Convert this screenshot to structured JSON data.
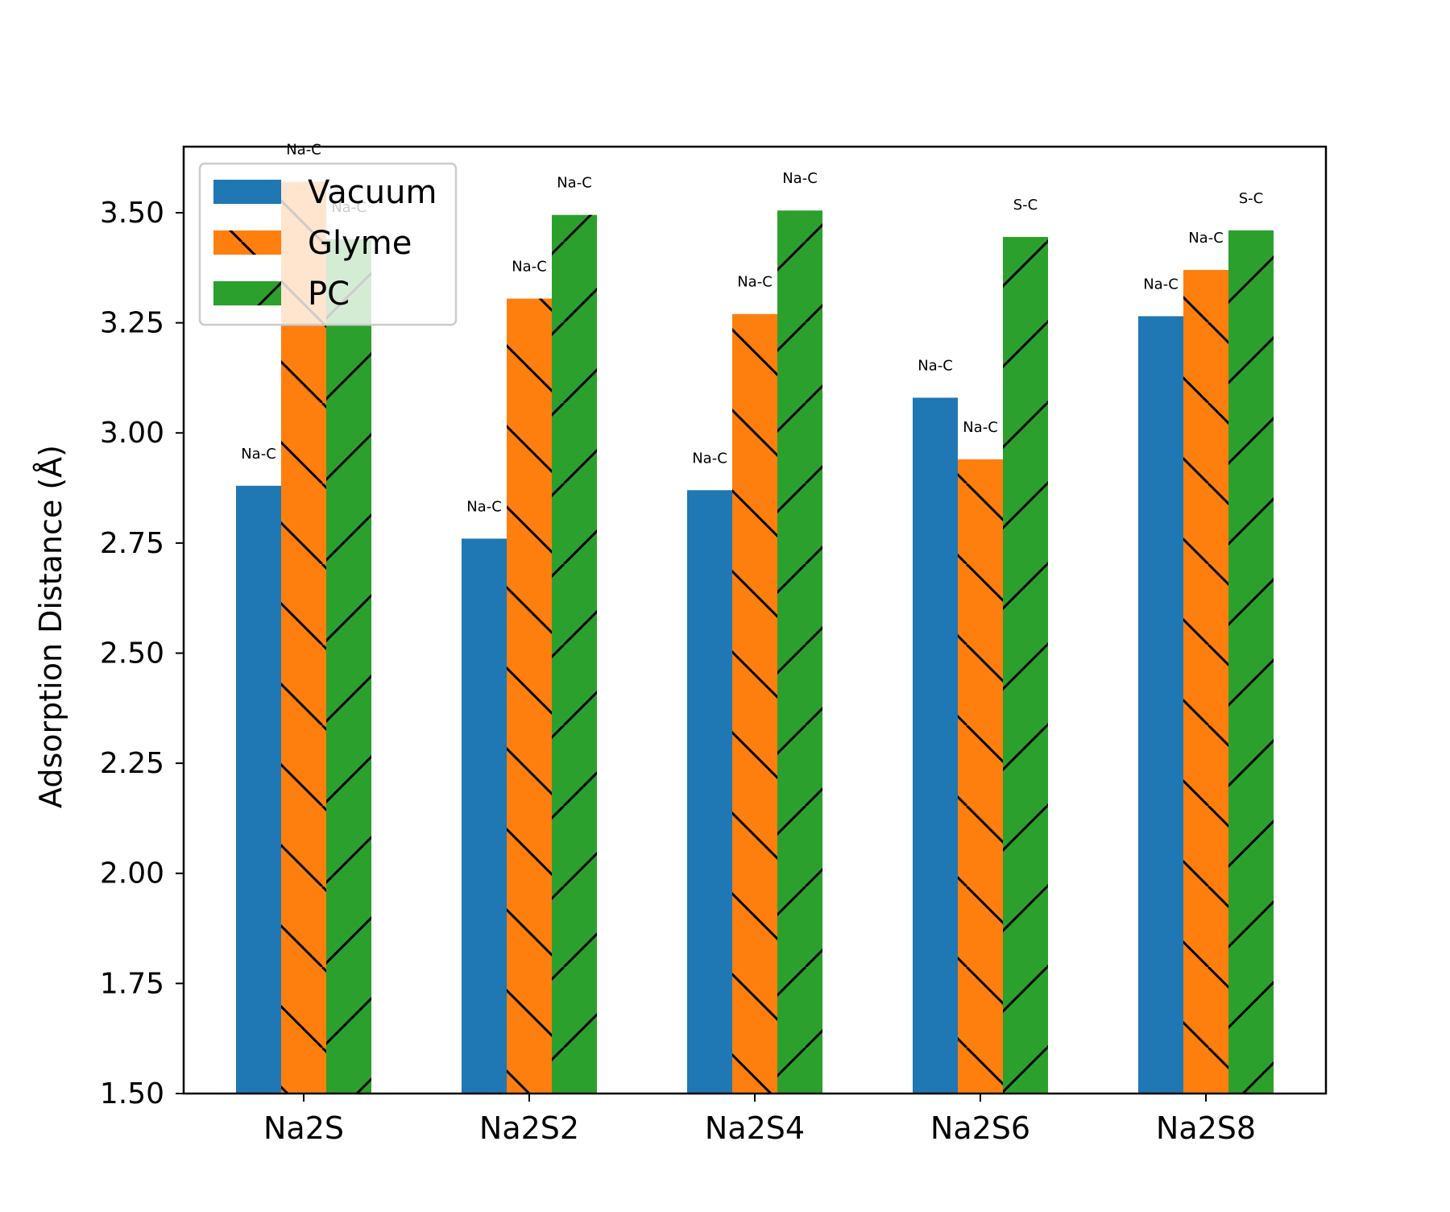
{
  "chart_data": {
    "type": "bar",
    "title": "",
    "xlabel": "",
    "ylabel": "Adsorption Distance (Å)",
    "ylim": [
      1.5,
      3.65
    ],
    "yticks": [
      1.5,
      1.75,
      2.0,
      2.25,
      2.5,
      2.75,
      3.0,
      3.25,
      3.5
    ],
    "ytick_labels": [
      "1.50",
      "1.75",
      "2.00",
      "2.25",
      "2.50",
      "2.75",
      "3.00",
      "3.25",
      "3.50"
    ],
    "categories": [
      "Na2S",
      "Na2S2",
      "Na2S4",
      "Na2S6",
      "Na2S8"
    ],
    "series": [
      {
        "name": "Vacuum",
        "color": "#1f77b4",
        "hatch": "none",
        "values": [
          2.88,
          2.76,
          2.87,
          3.08,
          3.265
        ],
        "labels": [
          "Na-C",
          "Na-C",
          "Na-C",
          "Na-C",
          "Na-C"
        ]
      },
      {
        "name": "Glyme",
        "color": "#ff7f0e",
        "hatch": "backslash",
        "values": [
          3.57,
          3.305,
          3.27,
          2.94,
          3.37
        ],
        "labels": [
          "Na-C",
          "Na-C",
          "Na-C",
          "Na-C",
          "Na-C"
        ]
      },
      {
        "name": "PC",
        "color": "#2ca02c",
        "hatch": "slash",
        "values": [
          3.44,
          3.495,
          3.505,
          3.445,
          3.46
        ],
        "labels": [
          "Na-C",
          "Na-C",
          "Na-C",
          "S-C",
          "S-C"
        ]
      }
    ],
    "grid": false,
    "legend_position": "top-left"
  }
}
